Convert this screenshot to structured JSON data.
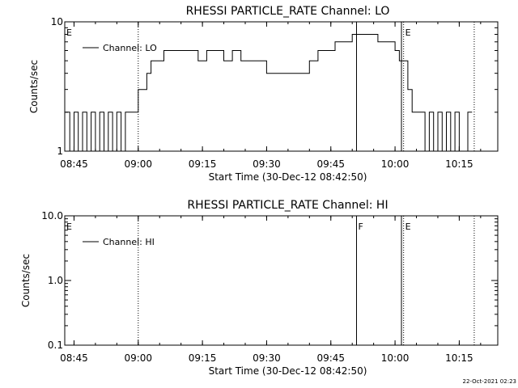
{
  "page": {
    "footer_timestamp": "22-Oct-2021 02:23"
  },
  "chart_data": [
    {
      "type": "line",
      "title": "RHESSI PARTICLE_RATE Channel: LO",
      "xlabel": "Start Time (30-Dec-12 08:42:50)",
      "ylabel": "Counts/sec",
      "y_scale": "log",
      "xlim": [
        "08:42:50",
        "10:24:00"
      ],
      "ylim": [
        1,
        10
      ],
      "x_ticks": [
        "08:45",
        "09:00",
        "09:15",
        "09:30",
        "09:45",
        "10:00",
        "10:15"
      ],
      "y_ticks": [
        {
          "value": 1,
          "label": "1"
        },
        {
          "value": 10,
          "label": "10"
        }
      ],
      "legend": {
        "entries": [
          "Channel: LO"
        ],
        "placement": "upper-left"
      },
      "markers": [
        {
          "time": "08:42:50",
          "label": "E",
          "style": "dotted"
        },
        {
          "time": "09:00:00",
          "label": "",
          "style": "dotted"
        },
        {
          "time": "09:51:00",
          "label": "",
          "style": "solid"
        },
        {
          "time": "10:01:30",
          "label": "",
          "style": "solid"
        },
        {
          "time": "10:02:00",
          "label": "E",
          "style": "dotted"
        },
        {
          "time": "10:18:30",
          "label": "",
          "style": "dotted"
        }
      ],
      "series": [
        {
          "name": "Channel: LO",
          "x": [
            "08:43:00",
            "08:44:00",
            "08:45:00",
            "08:46:00",
            "08:47:00",
            "08:48:00",
            "08:49:00",
            "08:50:00",
            "08:51:00",
            "08:52:00",
            "08:53:00",
            "08:54:00",
            "08:55:00",
            "08:56:00",
            "08:57:00",
            "08:58:00",
            "08:59:00",
            "09:00:00",
            "09:01:00",
            "09:02:00",
            "09:03:00",
            "09:04:00",
            "09:05:00",
            "09:06:00",
            "09:07:00",
            "09:08:00",
            "09:10:00",
            "09:12:00",
            "09:14:00",
            "09:16:00",
            "09:18:00",
            "09:20:00",
            "09:22:00",
            "09:24:00",
            "09:26:00",
            "09:28:00",
            "09:30:00",
            "09:32:00",
            "09:34:00",
            "09:36:00",
            "09:38:00",
            "09:40:00",
            "09:42:00",
            "09:44:00",
            "09:46:00",
            "09:48:00",
            "09:50:00",
            "09:52:00",
            "09:54:00",
            "09:56:00",
            "09:58:00",
            "10:00:00",
            "10:01:00",
            "10:02:00",
            "10:03:00",
            "10:04:00",
            "10:05:00",
            "10:06:00",
            "10:07:00",
            "10:08:00",
            "10:09:00",
            "10:10:00",
            "10:11:00",
            "10:12:00",
            "10:13:00",
            "10:14:00",
            "10:15:00",
            "10:16:00",
            "10:17:00",
            "10:18:00"
          ],
          "y": [
            2,
            1,
            2,
            1,
            2,
            1,
            2,
            1,
            2,
            1,
            2,
            1,
            2,
            1,
            2,
            2,
            2,
            3,
            3,
            4,
            5,
            5,
            5,
            6,
            6,
            6,
            6,
            6,
            5,
            6,
            6,
            5,
            6,
            5,
            5,
            5,
            4,
            4,
            4,
            4,
            4,
            5,
            6,
            6,
            7,
            7,
            8,
            8,
            8,
            7,
            7,
            6,
            5,
            5,
            3,
            2,
            2,
            2,
            1,
            2,
            1,
            2,
            1,
            2,
            1,
            2,
            1,
            1,
            2,
            2
          ]
        }
      ]
    },
    {
      "type": "line",
      "title": "RHESSI PARTICLE_RATE Channel: HI",
      "xlabel": "Start Time (30-Dec-12 08:42:50)",
      "ylabel": "Counts/sec",
      "y_scale": "log",
      "xlim": [
        "08:42:50",
        "10:24:00"
      ],
      "ylim": [
        0.1,
        10
      ],
      "x_ticks": [
        "08:45",
        "09:00",
        "09:15",
        "09:30",
        "09:45",
        "10:00",
        "10:15"
      ],
      "y_ticks": [
        {
          "value": 0.1,
          "label": "0.1"
        },
        {
          "value": 1,
          "label": "1.0"
        },
        {
          "value": 10,
          "label": "10.0"
        }
      ],
      "legend": {
        "entries": [
          "Channel: HI"
        ],
        "placement": "upper-left"
      },
      "markers": [
        {
          "time": "08:42:50",
          "label": "E",
          "style": "dotted"
        },
        {
          "time": "09:00:00",
          "label": "",
          "style": "dotted"
        },
        {
          "time": "09:51:00",
          "label": "F",
          "style": "solid"
        },
        {
          "time": "10:01:30",
          "label": "",
          "style": "solid"
        },
        {
          "time": "10:02:00",
          "label": "E",
          "style": "dotted"
        },
        {
          "time": "10:18:30",
          "label": "",
          "style": "dotted"
        }
      ],
      "series": [
        {
          "name": "Channel: HI",
          "x": [],
          "y": []
        }
      ]
    }
  ]
}
